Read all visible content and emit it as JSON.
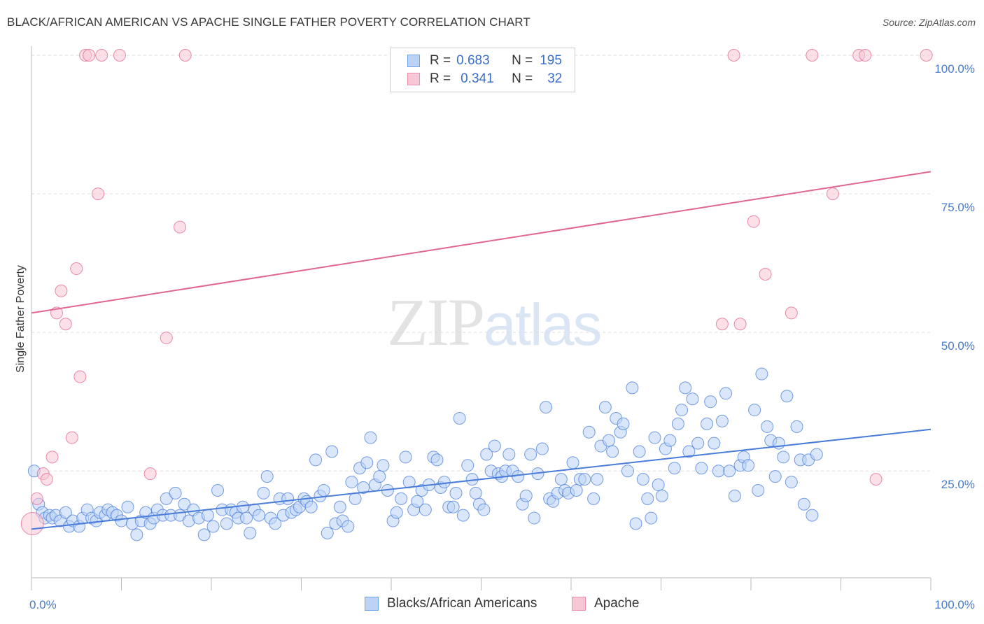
{
  "header": {
    "title": "BLACK/AFRICAN AMERICAN VS APACHE SINGLE FATHER POVERTY CORRELATION CHART",
    "source": "Source: ZipAtlas.com"
  },
  "watermark": {
    "zip": "ZIP",
    "atlas": "atlas"
  },
  "stats": [
    {
      "r_label": "R =",
      "r_value": "0.683",
      "n_label": "N =",
      "n_value": "195",
      "color": "#6fa3ea",
      "fill": "#bcd3f5"
    },
    {
      "r_label": "R =",
      "r_value": "0.341",
      "n_label": "N =",
      "n_value": "32",
      "color": "#ee8fae",
      "fill": "#f8c7d6"
    }
  ],
  "legend": [
    {
      "label": "Blacks/African Americans",
      "color": "#6fa3ea",
      "fill": "#bcd3f5"
    },
    {
      "label": "Apache",
      "color": "#ee8fae",
      "fill": "#f8c7d6"
    }
  ],
  "chart_data": {
    "type": "scatter",
    "title": "BLACK/AFRICAN AMERICAN VS APACHE SINGLE FATHER POVERTY CORRELATION CHART",
    "xlabel": "",
    "ylabel": "Single Father Poverty",
    "xlim": [
      0,
      100
    ],
    "ylim": [
      0,
      105
    ],
    "x_tick_labels": [
      "0.0%",
      "100.0%"
    ],
    "y_ticks": [
      25,
      50,
      75,
      100
    ],
    "y_tick_labels": [
      "25.0%",
      "50.0%",
      "75.0%",
      "100.0%"
    ],
    "grid": "horizontal dashed",
    "legend_position": "bottom-center",
    "series": [
      {
        "name": "Blacks/African Americans",
        "color": "#4a7cd9",
        "fill": "#bcd3f5",
        "trend": {
          "x": [
            0,
            100
          ],
          "y": [
            14.5,
            32.5
          ]
        },
        "points": [
          [
            0.3,
            25
          ],
          [
            0.8,
            19
          ],
          [
            1.2,
            17.5
          ],
          [
            1.5,
            16.5
          ],
          [
            2,
            17
          ],
          [
            2.3,
            16.5
          ],
          [
            2.7,
            17
          ],
          [
            3.2,
            16
          ],
          [
            3.8,
            17.5
          ],
          [
            4.2,
            15
          ],
          [
            4.6,
            16
          ],
          [
            5.3,
            15
          ],
          [
            5.7,
            16.5
          ],
          [
            6.2,
            18
          ],
          [
            6.7,
            16.5
          ],
          [
            7.2,
            16
          ],
          [
            7.6,
            17.5
          ],
          [
            8.2,
            17
          ],
          [
            8.5,
            18
          ],
          [
            9,
            17.5
          ],
          [
            9.5,
            17
          ],
          [
            10,
            16
          ],
          [
            10.7,
            18.5
          ],
          [
            11.2,
            15.5
          ],
          [
            11.7,
            13.5
          ],
          [
            12.2,
            16
          ],
          [
            12.7,
            17.5
          ],
          [
            13.2,
            15.5
          ],
          [
            13.6,
            16.5
          ],
          [
            14,
            18
          ],
          [
            14.6,
            17
          ],
          [
            15,
            20
          ],
          [
            15.5,
            17
          ],
          [
            16,
            21
          ],
          [
            16.5,
            17
          ],
          [
            17,
            19
          ],
          [
            17.5,
            16
          ],
          [
            18,
            18
          ],
          [
            18.6,
            16.5
          ],
          [
            19.2,
            13.5
          ],
          [
            19.6,
            17
          ],
          [
            20.2,
            15
          ],
          [
            20.7,
            21.5
          ],
          [
            21.2,
            18
          ],
          [
            21.7,
            15.5
          ],
          [
            22.2,
            18
          ],
          [
            22.7,
            17.5
          ],
          [
            23,
            16.5
          ],
          [
            23.5,
            18.5
          ],
          [
            23.9,
            16.5
          ],
          [
            24.3,
            13.8
          ],
          [
            24.8,
            18
          ],
          [
            25.3,
            17
          ],
          [
            25.8,
            21
          ],
          [
            26.2,
            24
          ],
          [
            26.6,
            16.5
          ],
          [
            27.1,
            15.5
          ],
          [
            27.6,
            20
          ],
          [
            28,
            17
          ],
          [
            28.5,
            20
          ],
          [
            28.9,
            17.5
          ],
          [
            29.4,
            18
          ],
          [
            29.8,
            18.5
          ],
          [
            30.3,
            20
          ],
          [
            30.6,
            19.5
          ],
          [
            31.1,
            18.5
          ],
          [
            31.6,
            27
          ],
          [
            32.1,
            20.5
          ],
          [
            32.5,
            21.5
          ],
          [
            32.9,
            13.8
          ],
          [
            33.4,
            28.5
          ],
          [
            33.8,
            15.5
          ],
          [
            34.3,
            18.5
          ],
          [
            34.6,
            16
          ],
          [
            35.2,
            15
          ],
          [
            35.6,
            23
          ],
          [
            36,
            20
          ],
          [
            36.5,
            25.5
          ],
          [
            36.9,
            22
          ],
          [
            37.3,
            26.5
          ],
          [
            37.7,
            31
          ],
          [
            38.2,
            22.5
          ],
          [
            38.7,
            24
          ],
          [
            39.1,
            26
          ],
          [
            39.6,
            21.5
          ],
          [
            40.2,
            16
          ],
          [
            40.6,
            17.5
          ],
          [
            41.1,
            20
          ],
          [
            41.6,
            27.5
          ],
          [
            42,
            23
          ],
          [
            42.5,
            18
          ],
          [
            42.9,
            19.5
          ],
          [
            43.4,
            21.5
          ],
          [
            43.8,
            18
          ],
          [
            44.2,
            22.5
          ],
          [
            44.7,
            27.5
          ],
          [
            45.1,
            27
          ],
          [
            45.5,
            22
          ],
          [
            45.9,
            23
          ],
          [
            46.4,
            18.5
          ],
          [
            46.9,
            18.5
          ],
          [
            47.2,
            21
          ],
          [
            47.6,
            34.5
          ],
          [
            48,
            17
          ],
          [
            48.5,
            26
          ],
          [
            49,
            23.5
          ],
          [
            49.4,
            21
          ],
          [
            49.8,
            19
          ],
          [
            50.3,
            18
          ],
          [
            50.6,
            28
          ],
          [
            51.1,
            25
          ],
          [
            51.5,
            29.5
          ],
          [
            51.9,
            24.5
          ],
          [
            52.3,
            24
          ],
          [
            52.7,
            25
          ],
          [
            53.1,
            28
          ],
          [
            53.5,
            25
          ],
          [
            54.1,
            24
          ],
          [
            54.6,
            19
          ],
          [
            55,
            20.5
          ],
          [
            55.5,
            28
          ],
          [
            55.9,
            16.5
          ],
          [
            56.3,
            24.5
          ],
          [
            56.8,
            29
          ],
          [
            57.2,
            36.5
          ],
          [
            57.6,
            20
          ],
          [
            58,
            19.5
          ],
          [
            58.5,
            21
          ],
          [
            58.9,
            23.5
          ],
          [
            59.3,
            21.5
          ],
          [
            59.7,
            21
          ],
          [
            60.2,
            26.5
          ],
          [
            60.6,
            21.5
          ],
          [
            61,
            23.5
          ],
          [
            61.5,
            23.5
          ],
          [
            62,
            32
          ],
          [
            62.5,
            20
          ],
          [
            62.9,
            23.5
          ],
          [
            63.3,
            29.5
          ],
          [
            63.8,
            36.5
          ],
          [
            64.2,
            30.5
          ],
          [
            64.6,
            28.5
          ],
          [
            65,
            34.5
          ],
          [
            65.5,
            32
          ],
          [
            65.8,
            33.5
          ],
          [
            66.3,
            25
          ],
          [
            66.8,
            40
          ],
          [
            67.2,
            15.5
          ],
          [
            67.6,
            28.5
          ],
          [
            68,
            23.5
          ],
          [
            68.5,
            20
          ],
          [
            68.9,
            16.5
          ],
          [
            69.3,
            31
          ],
          [
            69.7,
            22.5
          ],
          [
            70.1,
            20.5
          ],
          [
            70.5,
            29
          ],
          [
            71,
            30.5
          ],
          [
            71.5,
            25.5
          ],
          [
            71.9,
            33.5
          ],
          [
            72.3,
            36
          ],
          [
            72.7,
            40
          ],
          [
            73.1,
            28.5
          ],
          [
            73.5,
            38
          ],
          [
            74.1,
            30
          ],
          [
            74.5,
            25.5
          ],
          [
            75.1,
            33.5
          ],
          [
            75.5,
            37.5
          ],
          [
            75.9,
            30
          ],
          [
            76.4,
            25
          ],
          [
            76.8,
            34
          ],
          [
            77.2,
            39
          ],
          [
            77.6,
            25
          ],
          [
            78.2,
            20.5
          ],
          [
            78.8,
            26
          ],
          [
            79.2,
            27.5
          ],
          [
            79.7,
            26
          ],
          [
            80.4,
            36
          ],
          [
            80.8,
            21.5
          ],
          [
            81.2,
            42.5
          ],
          [
            81.8,
            33
          ],
          [
            82.2,
            30.5
          ],
          [
            82.7,
            24
          ],
          [
            83.1,
            30
          ],
          [
            83.6,
            27.5
          ],
          [
            84,
            38.5
          ],
          [
            84.5,
            23
          ],
          [
            85.1,
            33
          ],
          [
            85.5,
            27
          ],
          [
            85.9,
            19
          ],
          [
            86.4,
            27
          ],
          [
            86.8,
            17
          ],
          [
            87.3,
            28
          ]
        ]
      },
      {
        "name": "Apache",
        "color": "#e0678f",
        "fill": "#f8c7d6",
        "trend": {
          "x": [
            0,
            100
          ],
          "y": [
            53.5,
            79
          ]
        },
        "points": [
          [
            0.1,
            15.5
          ],
          [
            0.6,
            20
          ],
          [
            1.3,
            24.5
          ],
          [
            1.7,
            23.5
          ],
          [
            2.3,
            27.5
          ],
          [
            2.8,
            53.5
          ],
          [
            3.3,
            57.5
          ],
          [
            3.8,
            51.5
          ],
          [
            4.5,
            31
          ],
          [
            5,
            61.5
          ],
          [
            5.4,
            42
          ],
          [
            6,
            100
          ],
          [
            6.4,
            100
          ],
          [
            7.4,
            75
          ],
          [
            7.8,
            100
          ],
          [
            9.8,
            100
          ],
          [
            13.2,
            24.5
          ],
          [
            15,
            49
          ],
          [
            16.5,
            69
          ],
          [
            17.1,
            100
          ],
          [
            78.1,
            100
          ],
          [
            80.3,
            70
          ],
          [
            81.6,
            60.5
          ],
          [
            84.5,
            53.5
          ],
          [
            86.8,
            100
          ],
          [
            89.1,
            75
          ],
          [
            92,
            100
          ],
          [
            92.7,
            100
          ],
          [
            93.9,
            23.5
          ],
          [
            99.5,
            100
          ],
          [
            76.8,
            51.5
          ],
          [
            78.8,
            51.5
          ]
        ]
      }
    ]
  }
}
